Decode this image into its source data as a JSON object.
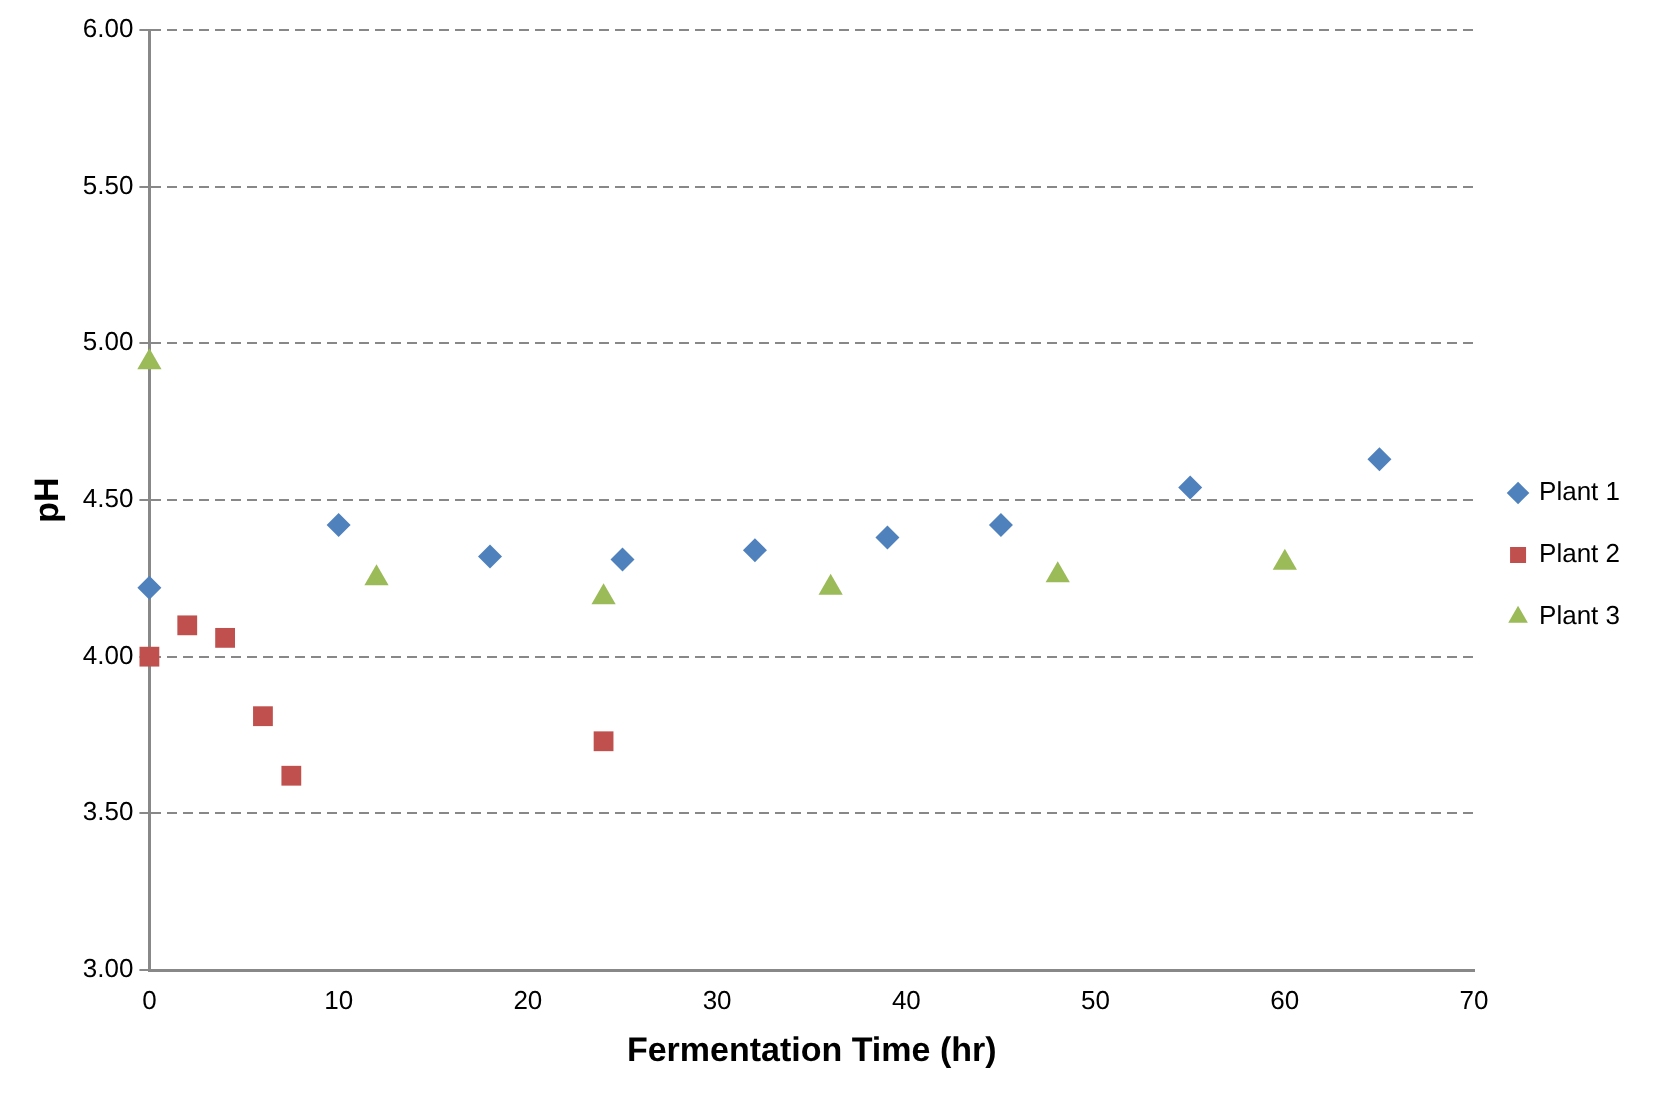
{
  "chart_data": {
    "type": "scatter",
    "xlabel": "Fermentation Time (hr)",
    "ylabel": "pH",
    "xlim": [
      0,
      70
    ],
    "xticks": [
      0,
      10,
      20,
      30,
      40,
      50,
      60,
      70
    ],
    "ylim": [
      3,
      6
    ],
    "yticks": [
      {
        "value": 3,
        "label": "3.00"
      },
      {
        "value": 3.5,
        "label": "3.50"
      },
      {
        "value": 4,
        "label": "4.00"
      },
      {
        "value": 4.5,
        "label": "4.50"
      },
      {
        "value": 5,
        "label": "5.00"
      },
      {
        "value": 5.5,
        "label": "5.50"
      },
      {
        "value": 6,
        "label": "6.00"
      }
    ],
    "grid": "y",
    "legend": "right",
    "series": [
      {
        "name": "Plant 1",
        "color": "#4f81bd",
        "marker": "diamond",
        "x": [
          0,
          10,
          18,
          25,
          32,
          39,
          45,
          55,
          65
        ],
        "values": [
          4.22,
          4.42,
          4.32,
          4.31,
          4.34,
          4.38,
          4.42,
          4.54,
          4.63
        ]
      },
      {
        "name": "Plant 2",
        "color": "#c0504d",
        "marker": "square",
        "x": [
          0,
          2,
          4,
          6,
          7.5,
          24
        ],
        "values": [
          4.0,
          4.1,
          4.06,
          3.81,
          3.62,
          3.73
        ]
      },
      {
        "name": "Plant 3",
        "color": "#9bbb59",
        "marker": "triangle",
        "x": [
          0,
          12,
          24,
          36,
          48,
          60
        ],
        "values": [
          4.94,
          4.25,
          4.19,
          4.22,
          4.26,
          4.3
        ]
      }
    ]
  }
}
